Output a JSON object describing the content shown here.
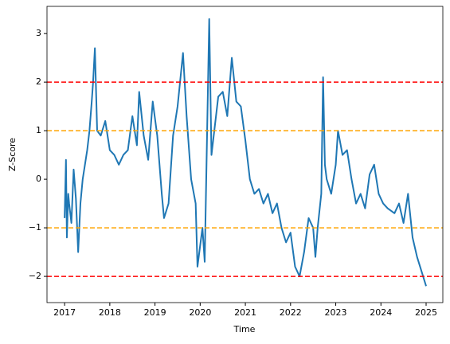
{
  "chart_data": {
    "type": "line",
    "xlabel": "Time",
    "ylabel": "Z-Score",
    "xlim": [
      2016.61,
      2025.37
    ],
    "ylim": [
      -2.54,
      3.56
    ],
    "xticks": [
      2017,
      2018,
      2019,
      2020,
      2021,
      2022,
      2023,
      2024,
      2025
    ],
    "yticks": [
      {
        "value": -2,
        "label": "−2"
      },
      {
        "value": -1,
        "label": "−1"
      },
      0,
      1,
      2,
      3
    ],
    "reference_lines": [
      {
        "value": 2,
        "color": "red"
      },
      {
        "value": 1,
        "color": "orange"
      },
      {
        "value": -1,
        "color": "orange"
      },
      {
        "value": -2,
        "color": "red"
      }
    ],
    "series": [
      {
        "color": "#1f77b4",
        "x": [
          2017.0,
          2017.03,
          2017.05,
          2017.08,
          2017.1,
          2017.15,
          2017.2,
          2017.25,
          2017.3,
          2017.35,
          2017.4,
          2017.45,
          2017.5,
          2017.55,
          2017.6,
          2017.63,
          2017.67,
          2017.72,
          2017.8,
          2017.9,
          2018.0,
          2018.1,
          2018.2,
          2018.3,
          2018.4,
          2018.5,
          2018.6,
          2018.65,
          2018.75,
          2018.85,
          2018.9,
          2018.95,
          2019.05,
          2019.15,
          2019.2,
          2019.3,
          2019.35,
          2019.4,
          2019.5,
          2019.62,
          2019.7,
          2019.8,
          2019.9,
          2019.94,
          2020.05,
          2020.1,
          2020.2,
          2020.25,
          2020.3,
          2020.4,
          2020.5,
          2020.6,
          2020.7,
          2020.8,
          2020.9,
          2021.0,
          2021.1,
          2021.2,
          2021.3,
          2021.4,
          2021.5,
          2021.6,
          2021.7,
          2021.8,
          2021.9,
          2022.0,
          2022.1,
          2022.2,
          2022.3,
          2022.4,
          2022.5,
          2022.55,
          2022.6,
          2022.68,
          2022.72,
          2022.76,
          2022.8,
          2022.9,
          2023.0,
          2023.05,
          2023.15,
          2023.25,
          2023.35,
          2023.45,
          2023.55,
          2023.65,
          2023.75,
          2023.85,
          2023.95,
          2024.05,
          2024.15,
          2024.3,
          2024.4,
          2024.5,
          2024.6,
          2024.7,
          2024.8,
          2024.9,
          2025.0
        ],
        "values": [
          -0.8,
          0.4,
          -1.2,
          -0.3,
          -0.5,
          -0.9,
          0.2,
          -0.4,
          -1.5,
          -0.5,
          0.0,
          0.3,
          0.6,
          1.0,
          1.6,
          2.0,
          2.7,
          1.0,
          0.9,
          1.2,
          0.6,
          0.5,
          0.3,
          0.5,
          0.6,
          1.3,
          0.7,
          1.8,
          0.9,
          0.4,
          1.0,
          1.6,
          0.9,
          -0.3,
          -0.8,
          -0.5,
          0.2,
          0.9,
          1.5,
          2.6,
          1.3,
          0.0,
          -0.5,
          -1.8,
          -1.0,
          -1.7,
          3.3,
          0.5,
          0.9,
          1.7,
          1.8,
          1.3,
          2.5,
          1.6,
          1.5,
          0.8,
          0.0,
          -0.3,
          -0.2,
          -0.5,
          -0.3,
          -0.7,
          -0.5,
          -1.0,
          -1.3,
          -1.1,
          -1.8,
          -2.0,
          -1.5,
          -0.8,
          -1.0,
          -1.6,
          -1.0,
          -0.3,
          2.1,
          0.3,
          0.0,
          -0.3,
          0.3,
          1.0,
          0.5,
          0.6,
          0.0,
          -0.5,
          -0.3,
          -0.6,
          0.1,
          0.3,
          -0.3,
          -0.5,
          -0.6,
          -0.7,
          -0.5,
          -0.9,
          -0.3,
          -1.2,
          -1.6,
          -1.9,
          -2.2
        ]
      }
    ]
  }
}
